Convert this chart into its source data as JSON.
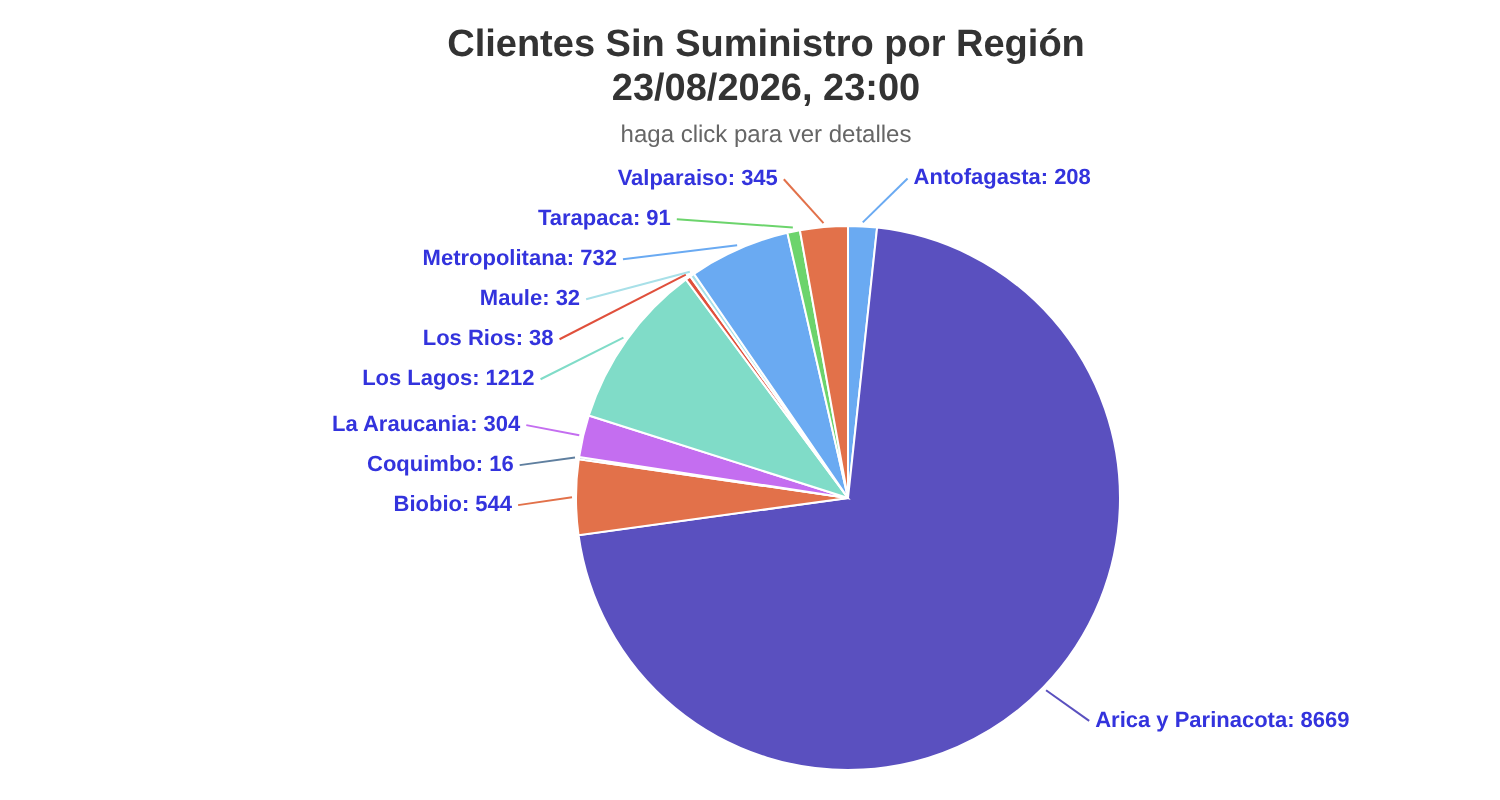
{
  "chart_data": {
    "type": "pie",
    "title": "Clientes Sin Suministro por Región\n23/08/2026, 23:00",
    "subtitle": "haga click para ver detalles",
    "categories": [
      "Antofagasta",
      "Arica y Parinacota",
      "Biobio",
      "Coquimbo",
      "La Araucania",
      "Los Lagos",
      "Los Rios",
      "Maule",
      "Metropolitana",
      "Tarapaca",
      "Valparaiso"
    ],
    "values": [
      208,
      8669,
      544,
      16,
      304,
      1212,
      38,
      32,
      732,
      91,
      345
    ],
    "colors": [
      "#6aaaf2",
      "#5a50bf",
      "#e2714a",
      "#5f7f9f",
      "#c46ef0",
      "#80dcc8",
      "#e0503c",
      "#a8e0e8",
      "#6aaaf2",
      "#6cd46c",
      "#e2714a"
    ],
    "value_labels": [
      ": 208",
      ": 8669",
      ": 544",
      ": 16",
      ": 304",
      ": 1212",
      ": 38",
      ": 32",
      ": 732",
      ": 91",
      ": 345"
    ]
  }
}
